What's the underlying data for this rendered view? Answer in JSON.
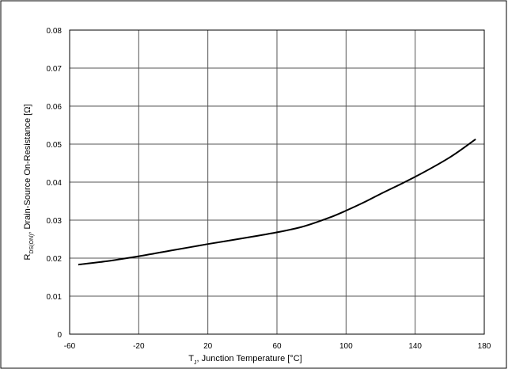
{
  "chart_data": {
    "type": "line",
    "xlabel_main": "T",
    "xlabel_sub": "J",
    "xlabel_rest": ", Junction Temperature [°C]",
    "ylabel_main": "R",
    "ylabel_sub": "DS(ON)",
    "ylabel_rest": ", Drain-Source On-Resistance [Ω]",
    "xlim": [
      -60,
      180
    ],
    "ylim": [
      0,
      0.08
    ],
    "x_ticks": [
      -60,
      -20,
      20,
      60,
      100,
      140,
      180
    ],
    "x_tick_labels": [
      "-60",
      "-20",
      "20",
      "60",
      "100",
      "140",
      "180"
    ],
    "y_ticks": [
      0,
      0.01,
      0.02,
      0.03,
      0.04,
      0.05,
      0.06,
      0.07,
      0.08
    ],
    "y_tick_labels": [
      "0",
      "0.01",
      "0.02",
      "0.03",
      "0.04",
      "0.05",
      "0.06",
      "0.07",
      "0.08"
    ],
    "grid": true,
    "series": [
      {
        "color": "#000000",
        "x": [
          -55,
          -40,
          -20,
          0,
          20,
          40,
          60,
          75,
          90,
          100,
          110,
          120,
          140,
          160,
          175
        ],
        "y": [
          0.0183,
          0.0191,
          0.0205,
          0.0221,
          0.0237,
          0.0252,
          0.0268,
          0.0283,
          0.0306,
          0.0325,
          0.0346,
          0.0369,
          0.0414,
          0.0465,
          0.0513
        ]
      }
    ]
  }
}
